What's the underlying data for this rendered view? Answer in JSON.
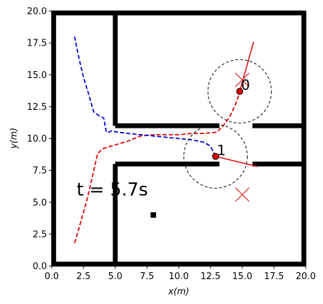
{
  "chart_data": {
    "type": "line",
    "xlabel": "x(m)",
    "ylabel": "y(m)",
    "xlim": [
      0,
      20
    ],
    "ylim": [
      0,
      20
    ],
    "x_ticks": [
      "0.0",
      "2.5",
      "5.0",
      "7.5",
      "10.0",
      "12.5",
      "15.0",
      "17.5",
      "20.0"
    ],
    "y_ticks": [
      "0.0",
      "2.5",
      "5.0",
      "7.5",
      "10.0",
      "12.5",
      "15.0",
      "17.5",
      "20.0"
    ],
    "annotation": "t = 5.7s",
    "colors": {
      "series_0": "#dd0000",
      "series_1": "#0000dd",
      "agent_fill": "#dd0000",
      "goal": "#dd3333",
      "wall": "#000000"
    },
    "walls": [
      {
        "x1": 0.15,
        "y1": 0,
        "x2": 0.15,
        "y2": 20
      },
      {
        "x1": 19.85,
        "y1": 0,
        "x2": 19.85,
        "y2": 20
      },
      {
        "x1": 0,
        "y1": 0.15,
        "x2": 20,
        "y2": 0.15
      },
      {
        "x1": 0,
        "y1": 19.85,
        "x2": 20,
        "y2": 19.85
      },
      {
        "x1": 5,
        "y1": 20,
        "x2": 5,
        "y2": 11
      },
      {
        "x1": 5,
        "y1": 11,
        "x2": 13.2,
        "y2": 11
      },
      {
        "x1": 15.8,
        "y1": 11,
        "x2": 20,
        "y2": 11
      },
      {
        "x1": 5,
        "y1": 8,
        "x2": 13.2,
        "y2": 8
      },
      {
        "x1": 15.8,
        "y1": 8,
        "x2": 20,
        "y2": 8
      },
      {
        "x1": 5,
        "y1": 8,
        "x2": 5,
        "y2": 0
      }
    ],
    "obstacle_point": {
      "x": 8.0,
      "y": 4.0
    },
    "series": [
      {
        "x": [
          1.8,
          2.3,
          2.8,
          3.2,
          3.6,
          4.0,
          5.0,
          6.0,
          7.0,
          8.0,
          9.0,
          10.0,
          11.0,
          12.0,
          13.0,
          13.5,
          14.0,
          14.3,
          14.6,
          14.8
        ],
        "y": [
          1.8,
          3.5,
          5.3,
          7.0,
          8.8,
          9.2,
          9.5,
          9.8,
          10.2,
          10.3,
          10.3,
          10.3,
          10.4,
          10.4,
          10.5,
          11.0,
          11.7,
          12.3,
          13.0,
          13.7
        ]
      },
      {
        "x": [
          1.8,
          2.1,
          2.5,
          2.9,
          3.3,
          3.7,
          4.1,
          4.3,
          4.5,
          4.7,
          5.2,
          6.0,
          7.0,
          8.0,
          9.0,
          10.0,
          11.0,
          12.0,
          12.5,
          12.9
        ],
        "y": [
          18.0,
          16.5,
          14.8,
          13.5,
          12.1,
          11.8,
          11.6,
          10.5,
          10.5,
          10.6,
          10.5,
          10.4,
          10.3,
          10.2,
          10.1,
          10.0,
          9.9,
          9.7,
          9.4,
          8.6
        ]
      }
    ],
    "agents": [
      {
        "label": "0",
        "x": 14.8,
        "y": 13.7,
        "radius": 2.5,
        "heading_x": 15.9,
        "heading_y": 17.6,
        "goal_x": 15.0,
        "goal_y": 14.6
      },
      {
        "label": "1",
        "x": 12.9,
        "y": 8.6,
        "radius": 2.5,
        "heading_x": 16.2,
        "heading_y": 7.8,
        "goal_x": 15.0,
        "goal_y": 5.6
      }
    ]
  }
}
